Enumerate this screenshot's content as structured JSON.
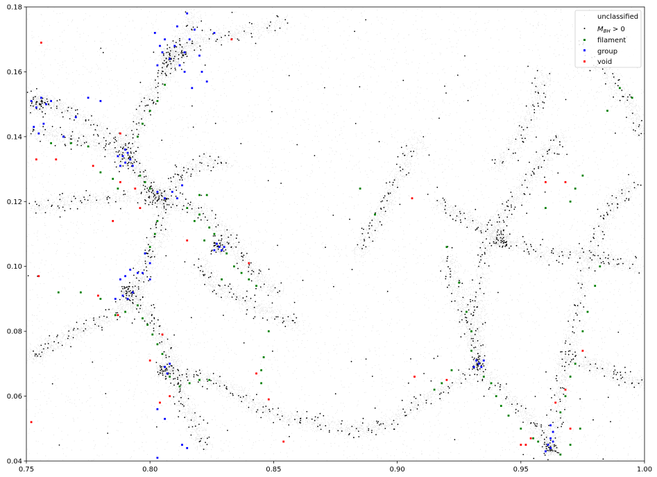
{
  "chart_data": {
    "type": "scatter",
    "title": "",
    "xlabel": "",
    "ylabel": "",
    "xlim": [
      0.75,
      1.0
    ],
    "ylim": [
      0.04,
      0.18
    ],
    "grid": false,
    "legend_position": "top-right",
    "xticks": [
      0.75,
      0.8,
      0.85,
      0.9,
      0.95,
      1.0
    ],
    "xtick_labels": [
      "0.75",
      "0.80",
      "0.85",
      "0.90",
      "0.95",
      "1.00"
    ],
    "yticks": [
      0.04,
      0.06,
      0.08,
      0.1,
      0.12,
      0.14,
      0.16,
      0.18
    ],
    "ytick_labels": [
      "0.04",
      "0.06",
      "0.08",
      "0.10",
      "0.12",
      "0.14",
      "0.16",
      "0.18"
    ],
    "legend": {
      "entries": [
        {
          "label": "unclassified",
          "color": "#c8c8c8",
          "marker": "pixel"
        },
        {
          "label": "M_BH > 0",
          "label_main": "M",
          "label_sub": "BH",
          "label_tail": " > 0",
          "color": "#000000",
          "marker": "small-dot"
        },
        {
          "label": "filament",
          "color": "#007f00",
          "marker": "dot"
        },
        {
          "label": "group",
          "color": "#0000ff",
          "marker": "dot"
        },
        {
          "label": "void",
          "color": "#ff0000",
          "marker": "dot"
        }
      ]
    },
    "filaments": [
      [
        [
          0.752,
          0.152
        ],
        [
          0.762,
          0.15
        ],
        [
          0.772,
          0.146
        ],
        [
          0.785,
          0.14
        ],
        [
          0.792,
          0.136
        ]
      ],
      [
        [
          0.752,
          0.142
        ],
        [
          0.765,
          0.14
        ],
        [
          0.778,
          0.138
        ],
        [
          0.792,
          0.134
        ]
      ],
      [
        [
          0.792,
          0.136
        ],
        [
          0.796,
          0.146
        ],
        [
          0.8,
          0.152
        ],
        [
          0.806,
          0.16
        ],
        [
          0.812,
          0.168
        ],
        [
          0.818,
          0.178
        ]
      ],
      [
        [
          0.806,
          0.16
        ],
        [
          0.812,
          0.165
        ],
        [
          0.82,
          0.17
        ],
        [
          0.835,
          0.172
        ],
        [
          0.855,
          0.175
        ]
      ],
      [
        [
          0.792,
          0.134
        ],
        [
          0.796,
          0.128
        ],
        [
          0.8,
          0.124
        ],
        [
          0.806,
          0.12
        ]
      ],
      [
        [
          0.806,
          0.12
        ],
        [
          0.818,
          0.118
        ],
        [
          0.828,
          0.112
        ],
        [
          0.834,
          0.106
        ],
        [
          0.842,
          0.098
        ],
        [
          0.852,
          0.092
        ]
      ],
      [
        [
          0.806,
          0.12
        ],
        [
          0.804,
          0.112
        ],
        [
          0.8,
          0.104
        ],
        [
          0.796,
          0.096
        ],
        [
          0.794,
          0.09
        ],
        [
          0.8,
          0.084
        ],
        [
          0.806,
          0.076
        ],
        [
          0.81,
          0.068
        ],
        [
          0.812,
          0.06
        ],
        [
          0.818,
          0.052
        ],
        [
          0.822,
          0.044
        ]
      ],
      [
        [
          0.794,
          0.09
        ],
        [
          0.782,
          0.084
        ],
        [
          0.77,
          0.08
        ],
        [
          0.76,
          0.076
        ],
        [
          0.752,
          0.072
        ]
      ],
      [
        [
          0.806,
          0.068
        ],
        [
          0.818,
          0.066
        ],
        [
          0.83,
          0.064
        ],
        [
          0.84,
          0.058
        ],
        [
          0.852,
          0.054
        ],
        [
          0.866,
          0.052
        ],
        [
          0.88,
          0.05
        ],
        [
          0.893,
          0.05
        ]
      ],
      [
        [
          0.806,
          0.12
        ],
        [
          0.812,
          0.128
        ],
        [
          0.82,
          0.132
        ],
        [
          0.832,
          0.132
        ]
      ],
      [
        [
          0.752,
          0.118
        ],
        [
          0.765,
          0.12
        ],
        [
          0.78,
          0.121
        ],
        [
          0.8,
          0.122
        ]
      ],
      [
        [
          0.893,
          0.05
        ],
        [
          0.905,
          0.056
        ],
        [
          0.918,
          0.062
        ],
        [
          0.933,
          0.068
        ],
        [
          0.944,
          0.06
        ],
        [
          0.955,
          0.052
        ],
        [
          0.962,
          0.045
        ]
      ],
      [
        [
          0.933,
          0.068
        ],
        [
          0.932,
          0.08
        ],
        [
          0.932,
          0.09
        ],
        [
          0.935,
          0.104
        ],
        [
          0.94,
          0.112
        ],
        [
          0.945,
          0.118
        ],
        [
          0.952,
          0.126
        ],
        [
          0.96,
          0.134
        ],
        [
          0.966,
          0.14
        ]
      ],
      [
        [
          0.962,
          0.045
        ],
        [
          0.966,
          0.058
        ],
        [
          0.968,
          0.07
        ],
        [
          0.972,
          0.084
        ],
        [
          0.976,
          0.1
        ],
        [
          0.982,
          0.112
        ],
        [
          0.988,
          0.12
        ],
        [
          0.996,
          0.126
        ]
      ],
      [
        [
          0.915,
          0.12
        ],
        [
          0.925,
          0.116
        ],
        [
          0.935,
          0.112
        ],
        [
          0.945,
          0.108
        ],
        [
          0.958,
          0.104
        ],
        [
          0.972,
          0.104
        ],
        [
          0.985,
          0.102
        ],
        [
          0.998,
          0.1
        ]
      ],
      [
        [
          0.92,
          0.104
        ],
        [
          0.924,
          0.094
        ],
        [
          0.928,
          0.084
        ],
        [
          0.932,
          0.074
        ]
      ],
      [
        [
          0.91,
          0.14
        ],
        [
          0.902,
          0.13
        ],
        [
          0.896,
          0.12
        ],
        [
          0.89,
          0.112
        ],
        [
          0.884,
          0.104
        ]
      ],
      [
        [
          0.975,
          0.168
        ],
        [
          0.985,
          0.16
        ],
        [
          0.994,
          0.15
        ],
        [
          1.0,
          0.14
        ]
      ],
      [
        [
          0.94,
          0.13
        ],
        [
          0.95,
          0.14
        ],
        [
          0.956,
          0.15
        ],
        [
          0.96,
          0.16
        ]
      ],
      [
        [
          0.965,
          0.072
        ],
        [
          0.978,
          0.07
        ],
        [
          0.99,
          0.066
        ],
        [
          1.0,
          0.064
        ]
      ],
      [
        [
          0.82,
          0.102
        ],
        [
          0.826,
          0.094
        ],
        [
          0.836,
          0.09
        ],
        [
          0.848,
          0.086
        ],
        [
          0.86,
          0.082
        ]
      ]
    ],
    "clusters": [
      {
        "x": 0.79,
        "y": 0.133,
        "r": 0.0025
      },
      {
        "x": 0.803,
        "y": 0.122,
        "r": 0.0025
      },
      {
        "x": 0.828,
        "y": 0.106,
        "r": 0.002
      },
      {
        "x": 0.791,
        "y": 0.092,
        "r": 0.002
      },
      {
        "x": 0.806,
        "y": 0.068,
        "r": 0.002
      },
      {
        "x": 0.933,
        "y": 0.07,
        "r": 0.0018
      },
      {
        "x": 0.962,
        "y": 0.044,
        "r": 0.0018
      },
      {
        "x": 0.755,
        "y": 0.15,
        "r": 0.0025
      },
      {
        "x": 0.808,
        "y": 0.165,
        "r": 0.003
      },
      {
        "x": 0.942,
        "y": 0.108,
        "r": 0.002
      }
    ],
    "group_points": [
      [
        0.752,
        0.151
      ],
      [
        0.754,
        0.149
      ],
      [
        0.756,
        0.152
      ],
      [
        0.758,
        0.15
      ],
      [
        0.76,
        0.151
      ],
      [
        0.753,
        0.143
      ],
      [
        0.755,
        0.141
      ],
      [
        0.757,
        0.144
      ],
      [
        0.765,
        0.14
      ],
      [
        0.77,
        0.146
      ],
      [
        0.775,
        0.152
      ],
      [
        0.78,
        0.151
      ],
      [
        0.789,
        0.134
      ],
      [
        0.79,
        0.132
      ],
      [
        0.791,
        0.135
      ],
      [
        0.792,
        0.133
      ],
      [
        0.788,
        0.131
      ],
      [
        0.79,
        0.136
      ],
      [
        0.793,
        0.131
      ],
      [
        0.787,
        0.134
      ],
      [
        0.803,
        0.123
      ],
      [
        0.806,
        0.121
      ],
      [
        0.809,
        0.123
      ],
      [
        0.811,
        0.121
      ],
      [
        0.813,
        0.125
      ],
      [
        0.828,
        0.106
      ],
      [
        0.829,
        0.105
      ],
      [
        0.827,
        0.107
      ],
      [
        0.83,
        0.106
      ],
      [
        0.826,
        0.105
      ],
      [
        0.789,
        0.091
      ],
      [
        0.791,
        0.09
      ],
      [
        0.793,
        0.092
      ],
      [
        0.786,
        0.09
      ],
      [
        0.79,
        0.097
      ],
      [
        0.792,
        0.099
      ],
      [
        0.788,
        0.096
      ],
      [
        0.795,
        0.098
      ],
      [
        0.798,
        0.104
      ],
      [
        0.8,
        0.101
      ],
      [
        0.797,
        0.098
      ],
      [
        0.8,
        0.096
      ],
      [
        0.806,
        0.069
      ],
      [
        0.807,
        0.067
      ],
      [
        0.808,
        0.07
      ],
      [
        0.803,
        0.162
      ],
      [
        0.805,
        0.166
      ],
      [
        0.808,
        0.164
      ],
      [
        0.806,
        0.17
      ],
      [
        0.81,
        0.168
      ],
      [
        0.812,
        0.162
      ],
      [
        0.814,
        0.166
      ],
      [
        0.816,
        0.17
      ],
      [
        0.818,
        0.173
      ],
      [
        0.82,
        0.165
      ],
      [
        0.802,
        0.172
      ],
      [
        0.815,
        0.178
      ],
      [
        0.821,
        0.16
      ],
      [
        0.823,
        0.157
      ],
      [
        0.817,
        0.155
      ],
      [
        0.804,
        0.168
      ],
      [
        0.811,
        0.174
      ],
      [
        0.826,
        0.172
      ],
      [
        0.814,
        0.16
      ],
      [
        0.933,
        0.07
      ],
      [
        0.934,
        0.069
      ],
      [
        0.932,
        0.071
      ],
      [
        0.935,
        0.071
      ],
      [
        0.931,
        0.069
      ],
      [
        0.962,
        0.044
      ],
      [
        0.961,
        0.045
      ],
      [
        0.963,
        0.046
      ],
      [
        0.962,
        0.047
      ],
      [
        0.96,
        0.043
      ],
      [
        0.963,
        0.049
      ],
      [
        0.962,
        0.051
      ],
      [
        0.813,
        0.045
      ],
      [
        0.815,
        0.044
      ],
      [
        0.803,
        0.041
      ],
      [
        0.806,
        0.053
      ],
      [
        0.803,
        0.056
      ]
    ],
    "filament_points": [
      [
        0.797,
        0.144
      ],
      [
        0.8,
        0.148
      ],
      [
        0.803,
        0.151
      ],
      [
        0.806,
        0.156
      ],
      [
        0.795,
        0.14
      ],
      [
        0.796,
        0.128
      ],
      [
        0.798,
        0.126
      ],
      [
        0.8,
        0.124
      ],
      [
        0.815,
        0.118
      ],
      [
        0.82,
        0.116
      ],
      [
        0.824,
        0.112
      ],
      [
        0.826,
        0.11
      ],
      [
        0.831,
        0.104
      ],
      [
        0.834,
        0.1
      ],
      [
        0.837,
        0.098
      ],
      [
        0.84,
        0.096
      ],
      [
        0.843,
        0.094
      ],
      [
        0.818,
        0.114
      ],
      [
        0.822,
        0.108
      ],
      [
        0.803,
        0.114
      ],
      [
        0.802,
        0.11
      ],
      [
        0.8,
        0.106
      ],
      [
        0.798,
        0.104
      ],
      [
        0.795,
        0.088
      ],
      [
        0.797,
        0.084
      ],
      [
        0.799,
        0.082
      ],
      [
        0.801,
        0.079
      ],
      [
        0.803,
        0.076
      ],
      [
        0.805,
        0.073
      ],
      [
        0.808,
        0.066
      ],
      [
        0.812,
        0.063
      ],
      [
        0.816,
        0.064
      ],
      [
        0.82,
        0.065
      ],
      [
        0.824,
        0.065
      ],
      [
        0.79,
        0.086
      ],
      [
        0.786,
        0.085
      ],
      [
        0.78,
        0.09
      ],
      [
        0.772,
        0.092
      ],
      [
        0.763,
        0.092
      ],
      [
        0.76,
        0.138
      ],
      [
        0.768,
        0.138
      ],
      [
        0.775,
        0.137
      ],
      [
        0.785,
        0.127
      ],
      [
        0.787,
        0.124
      ],
      [
        0.78,
        0.129
      ],
      [
        0.848,
        0.08
      ],
      [
        0.846,
        0.072
      ],
      [
        0.845,
        0.068
      ],
      [
        0.845,
        0.064
      ],
      [
        0.82,
        0.122
      ],
      [
        0.823,
        0.122
      ],
      [
        0.829,
        0.096
      ],
      [
        0.92,
        0.106
      ],
      [
        0.925,
        0.095
      ],
      [
        0.928,
        0.086
      ],
      [
        0.93,
        0.08
      ],
      [
        0.93,
        0.074
      ],
      [
        0.922,
        0.068
      ],
      [
        0.918,
        0.064
      ],
      [
        0.915,
        0.062
      ],
      [
        0.935,
        0.066
      ],
      [
        0.938,
        0.064
      ],
      [
        0.94,
        0.06
      ],
      [
        0.942,
        0.057
      ],
      [
        0.945,
        0.054
      ],
      [
        0.95,
        0.05
      ],
      [
        0.955,
        0.047
      ],
      [
        0.957,
        0.046
      ],
      [
        0.966,
        0.055
      ],
      [
        0.968,
        0.06
      ],
      [
        0.97,
        0.066
      ],
      [
        0.972,
        0.07
      ],
      [
        0.975,
        0.08
      ],
      [
        0.977,
        0.086
      ],
      [
        0.98,
        0.094
      ],
      [
        0.982,
        0.1
      ],
      [
        0.97,
        0.12
      ],
      [
        0.972,
        0.124
      ],
      [
        0.975,
        0.128
      ],
      [
        0.985,
        0.148
      ],
      [
        0.99,
        0.155
      ],
      [
        0.995,
        0.152
      ],
      [
        0.96,
        0.118
      ],
      [
        0.966,
        0.042
      ],
      [
        0.97,
        0.045
      ],
      [
        0.974,
        0.05
      ],
      [
        0.885,
        0.124
      ],
      [
        0.891,
        0.116
      ]
    ],
    "void_points": [
      [
        0.756,
        0.169
      ],
      [
        0.754,
        0.133
      ],
      [
        0.762,
        0.133
      ],
      [
        0.755,
        0.097
      ],
      [
        0.788,
        0.141
      ],
      [
        0.788,
        0.126
      ],
      [
        0.794,
        0.124
      ],
      [
        0.796,
        0.118
      ],
      [
        0.785,
        0.114
      ],
      [
        0.815,
        0.108
      ],
      [
        0.833,
        0.17
      ],
      [
        0.84,
        0.101
      ],
      [
        0.843,
        0.067
      ],
      [
        0.848,
        0.059
      ],
      [
        0.805,
        0.079
      ],
      [
        0.8,
        0.071
      ],
      [
        0.804,
        0.058
      ],
      [
        0.808,
        0.06
      ],
      [
        0.777,
        0.131
      ],
      [
        0.787,
        0.085
      ],
      [
        0.779,
        0.091
      ],
      [
        0.752,
        0.052
      ],
      [
        0.854,
        0.046
      ],
      [
        0.906,
        0.121
      ],
      [
        0.907,
        0.066
      ],
      [
        0.92,
        0.065
      ],
      [
        0.968,
        0.126
      ],
      [
        0.96,
        0.126
      ],
      [
        0.95,
        0.045
      ],
      [
        0.952,
        0.045
      ],
      [
        0.954,
        0.047
      ],
      [
        0.968,
        0.062
      ],
      [
        0.97,
        0.05
      ],
      [
        0.964,
        0.058
      ],
      [
        0.975,
        0.074
      ]
    ]
  }
}
